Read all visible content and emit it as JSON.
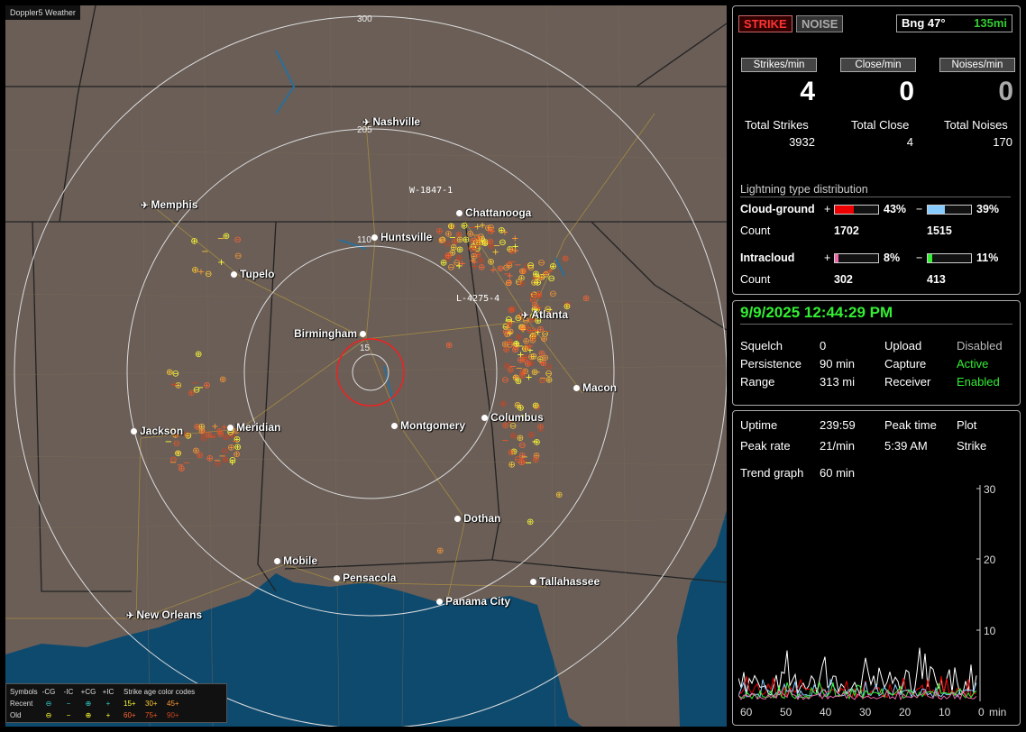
{
  "app": {
    "title": "Doppler5 Weather"
  },
  "map": {
    "ring_labels": [
      "300",
      "205",
      "110",
      "15"
    ],
    "markers": [
      "W-1847-1",
      "L-4275-4"
    ],
    "cities": [
      {
        "name": "Nashville",
        "kind": "airport"
      },
      {
        "name": "Memphis",
        "kind": "airport"
      },
      {
        "name": "Chattanooga",
        "kind": "city"
      },
      {
        "name": "Huntsville",
        "kind": "city"
      },
      {
        "name": "Tupelo",
        "kind": "city"
      },
      {
        "name": "Atlanta",
        "kind": "airport"
      },
      {
        "name": "Birmingham",
        "kind": "city"
      },
      {
        "name": "Macon",
        "kind": "city"
      },
      {
        "name": "Jackson",
        "kind": "city"
      },
      {
        "name": "Meridian",
        "kind": "city"
      },
      {
        "name": "Montgomery",
        "kind": "city"
      },
      {
        "name": "Columbus",
        "kind": "city"
      },
      {
        "name": "Dothan",
        "kind": "city"
      },
      {
        "name": "Mobile",
        "kind": "city"
      },
      {
        "name": "Pensacola",
        "kind": "city"
      },
      {
        "name": "Tallahassee",
        "kind": "city"
      },
      {
        "name": "Panama City",
        "kind": "city"
      },
      {
        "name": "New Orleans",
        "kind": "airport"
      }
    ]
  },
  "legend": {
    "header": [
      "Symbols",
      "-CG",
      "-IC",
      "+CG",
      "+IC",
      "Strike age color codes"
    ],
    "recent_label": "Recent",
    "old_label": "Old",
    "recent_symbols": [
      "⊖",
      "−",
      "⊕",
      "+"
    ],
    "old_symbols": [
      "⊖",
      "−",
      "⊕",
      "+"
    ],
    "recent_ages": [
      "15+",
      "30+",
      "45+"
    ],
    "old_ages": [
      "60+",
      "75+",
      "90+"
    ],
    "recent_symbol_color": "#3cc",
    "old_symbol_color": "#ff3",
    "age_colors": [
      "#ff3",
      "#fc3",
      "#f93",
      "#f63",
      "#e52",
      "#c42"
    ]
  },
  "panel1": {
    "strike_tab": "STRIKE",
    "noise_tab": "NOISE",
    "bearing": "Bng 47°",
    "range": "135mi",
    "rate_headers": [
      "Strikes/min",
      "Close/min",
      "Noises/min"
    ],
    "rates": [
      "4",
      "0",
      "0"
    ],
    "total_labels": [
      "Total Strikes",
      "Total Close",
      "Total Noises"
    ],
    "totals": [
      "3932",
      "4",
      "170"
    ],
    "dist_title": "Lightning type distribution",
    "cg_label": "Cloud-ground",
    "ic_label": "Intracloud",
    "count_label": "Count",
    "plus": "+",
    "minus": "−",
    "cg_pos_pct": "43%",
    "cg_neg_pct": "39%",
    "cg_pos_count": "1702",
    "cg_neg_count": "1515",
    "ic_pos_pct": "8%",
    "ic_neg_pct": "11%",
    "ic_pos_count": "302",
    "ic_neg_count": "413",
    "cg_pos_fill": 0.43,
    "cg_neg_fill": 0.39,
    "ic_pos_fill": 0.08,
    "ic_neg_fill": 0.11,
    "colors": {
      "cg_pos": "#e00",
      "cg_neg": "#8cf",
      "ic_pos": "#e6a",
      "ic_neg": "#3e3"
    }
  },
  "panel2": {
    "datetime": "9/9/2025 12:44:29 PM",
    "squelch_label": "Squelch",
    "squelch": "0",
    "persistence_label": "Persistence",
    "persistence": "90 min",
    "range_label": "Range",
    "range": "313 mi",
    "upload_label": "Upload",
    "upload": "Disabled",
    "capture_label": "Capture",
    "capture": "Active",
    "receiver_label": "Receiver",
    "receiver": "Enabled"
  },
  "panel3": {
    "uptime_label": "Uptime",
    "uptime": "239:59",
    "peak_time_label": "Peak time",
    "peak_time": "5:39 AM",
    "plot_label": "Plot",
    "plot": "Strike",
    "peak_rate_label": "Peak rate",
    "peak_rate": "21/min",
    "trend_label": "Trend graph",
    "trend": "60 min",
    "x_ticks": [
      "60",
      "50",
      "40",
      "30",
      "20",
      "10",
      "0",
      "min"
    ],
    "y_ticks": [
      "30",
      "20",
      "10"
    ]
  }
}
